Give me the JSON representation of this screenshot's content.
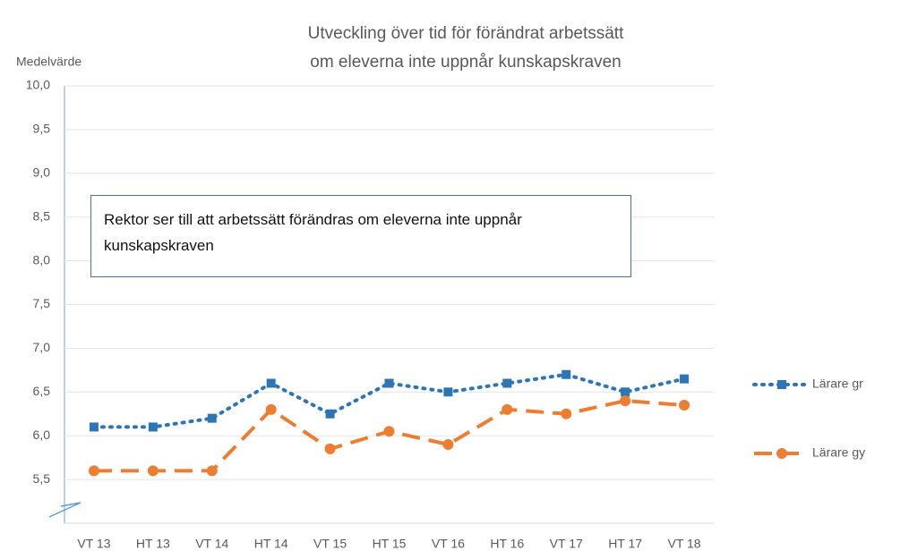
{
  "chart_data": {
    "type": "line",
    "title": [
      "Utveckling över tid för förändrat arbetssätt",
      "om eleverna inte uppnår kunskapskraven"
    ],
    "y_label": "Medelvärde",
    "annotation": "Rektor ser till att arbetssätt förändras om eleverna inte uppnår kunskapskraven",
    "categories": [
      "VT 13",
      "HT 13",
      "VT 14",
      "HT 14",
      "VT 15",
      "HT 15",
      "VT 16",
      "HT 16",
      "VT 17",
      "HT 17",
      "VT 18"
    ],
    "series": [
      {
        "name": "Lärare gr",
        "color": "#2e75b6",
        "marker": "square",
        "dash": "dotted",
        "values": [
          6.1,
          6.1,
          6.2,
          6.6,
          6.25,
          6.6,
          6.5,
          6.6,
          6.7,
          6.5,
          6.65
        ]
      },
      {
        "name": "Lärare gy",
        "color": "#ed7d31",
        "marker": "circle",
        "dash": "dashed",
        "values": [
          5.6,
          5.6,
          5.6,
          6.3,
          5.85,
          6.05,
          5.9,
          6.3,
          6.25,
          6.4,
          6.35
        ]
      }
    ],
    "ylim": [
      5,
      10
    ],
    "yticks": [
      {
        "value": 5.5,
        "label": "5,5"
      },
      {
        "value": 6,
        "label": "6,0"
      },
      {
        "value": 6.5,
        "label": "6,5"
      },
      {
        "value": 7,
        "label": "7,0"
      },
      {
        "value": 7.5,
        "label": "7,5"
      },
      {
        "value": 8,
        "label": "8,0"
      },
      {
        "value": 8.5,
        "label": "8,5"
      },
      {
        "value": 9,
        "label": "9,0"
      },
      {
        "value": 9.5,
        "label": "9,5"
      },
      {
        "value": 10,
        "label": "10,0"
      }
    ],
    "grid": true,
    "legend": "right"
  }
}
